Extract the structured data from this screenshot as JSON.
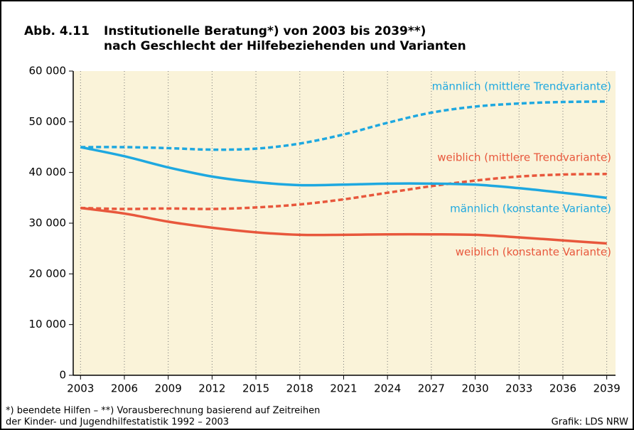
{
  "chart_data": {
    "type": "line",
    "label": "Abb. 4.11",
    "title": [
      "Institutionelle Beratung*) von 2003 bis 2039**)",
      "nach Geschlecht der Hilfebeziehenden und Varianten"
    ],
    "x": [
      2003,
      2006,
      2009,
      2012,
      2015,
      2018,
      2021,
      2024,
      2027,
      2030,
      2033,
      2036,
      2039
    ],
    "series": [
      {
        "name": "männlich (mittlere Trendvariante)",
        "color": "#1ea8e0",
        "dashed": true,
        "values": [
          45000,
          45000,
          44800,
          44500,
          44700,
          45700,
          47500,
          49800,
          51800,
          53000,
          53600,
          53900,
          54000
        ]
      },
      {
        "name": "weiblich (mittlere Trendvariante)",
        "color": "#e8573c",
        "dashed": true,
        "values": [
          33000,
          32800,
          32900,
          32800,
          33100,
          33700,
          34700,
          36000,
          37300,
          38400,
          39200,
          39600,
          39700
        ]
      },
      {
        "name": "männlich (konstante Variante)",
        "color": "#1ea8e0",
        "dashed": false,
        "values": [
          45000,
          43200,
          41000,
          39200,
          38100,
          37500,
          37600,
          37800,
          37800,
          37600,
          36900,
          36000,
          35000
        ]
      },
      {
        "name": "weiblich (konstante Variante)",
        "color": "#e8573c",
        "dashed": false,
        "values": [
          33000,
          31900,
          30300,
          29100,
          28200,
          27700,
          27700,
          27800,
          27800,
          27700,
          27200,
          26600,
          26000
        ]
      }
    ],
    "xlim": [
      2002.5,
      2039.6
    ],
    "xticks": [
      2003,
      2006,
      2009,
      2012,
      2015,
      2018,
      2021,
      2024,
      2027,
      2030,
      2033,
      2036,
      2039
    ],
    "ylim": [
      0,
      60000
    ],
    "yticks": [
      0,
      {
        "value": 10000,
        "label": "10 000"
      },
      {
        "value": 20000,
        "label": "20 000"
      },
      {
        "value": 30000,
        "label": "30 000"
      },
      {
        "value": 40000,
        "label": "40 000"
      },
      {
        "value": 50000,
        "label": "50 000"
      },
      {
        "value": 60000,
        "label": "60 000"
      }
    ],
    "grid": true,
    "footnotes": [
      "*) beendete Hilfen – **) Vorausberechnung basierend auf Zeitreihen",
      "der Kinder- und Jugendhilfestatistik 1992 – 2003"
    ],
    "source": "Grafik: LDS NRW"
  }
}
